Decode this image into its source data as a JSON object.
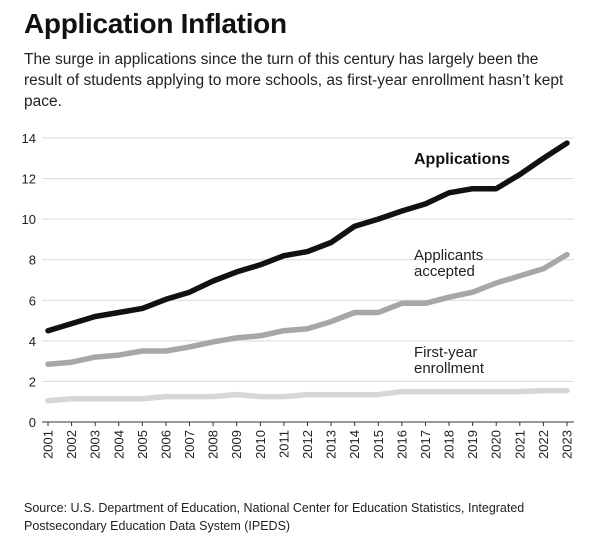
{
  "header": {
    "title": "Application Inflation",
    "subtitle": "The surge in applications since the turn of this century has largely been the result of students applying to more schools, as first-year enrollment hasn’t kept pace."
  },
  "footer": {
    "source": "Source: U.S. Department of Education, National Center for Education Statistics, Integrated Postsecondary Education Data System (IPEDS)"
  },
  "chart_data": {
    "type": "line",
    "title": "Application Inflation",
    "xlabel": "",
    "ylabel": "",
    "ylim": [
      0,
      14
    ],
    "yticks": [
      0,
      2,
      4,
      6,
      8,
      10,
      12,
      14
    ],
    "grid": true,
    "x": [
      "2001",
      "2002",
      "2003",
      "2004",
      "2005",
      "2006",
      "2007",
      "2008",
      "2009",
      "2010",
      "2011",
      "2012",
      "2013",
      "2014",
      "2015",
      "2016",
      "2017",
      "2018",
      "2019",
      "2020",
      "2021",
      "2022",
      "2023"
    ],
    "series": [
      {
        "name": "Applications",
        "label_lines": [
          "Applications"
        ],
        "color": "#111111",
        "values": [
          4.5,
          4.85,
          5.2,
          5.4,
          5.6,
          6.05,
          6.4,
          6.95,
          7.4,
          7.75,
          8.2,
          8.4,
          8.85,
          9.65,
          10.0,
          10.4,
          10.75,
          11.3,
          11.5,
          11.5,
          12.2,
          13.0,
          13.75
        ]
      },
      {
        "name": "Applicants accepted",
        "label_lines": [
          "Applicants",
          "accepted"
        ],
        "color": "#a7a7a7",
        "values": [
          2.85,
          2.95,
          3.2,
          3.3,
          3.5,
          3.5,
          3.7,
          3.95,
          4.15,
          4.25,
          4.5,
          4.6,
          4.95,
          5.4,
          5.4,
          5.85,
          5.85,
          6.15,
          6.4,
          6.85,
          7.2,
          7.55,
          8.25
        ]
      },
      {
        "name": "First-year enrollment",
        "label_lines": [
          "First-year",
          "enrollment"
        ],
        "color": "#d6d6d6",
        "values": [
          1.05,
          1.15,
          1.15,
          1.15,
          1.15,
          1.25,
          1.25,
          1.25,
          1.35,
          1.25,
          1.25,
          1.35,
          1.35,
          1.35,
          1.35,
          1.5,
          1.5,
          1.5,
          1.5,
          1.5,
          1.5,
          1.55,
          1.55
        ]
      }
    ]
  }
}
